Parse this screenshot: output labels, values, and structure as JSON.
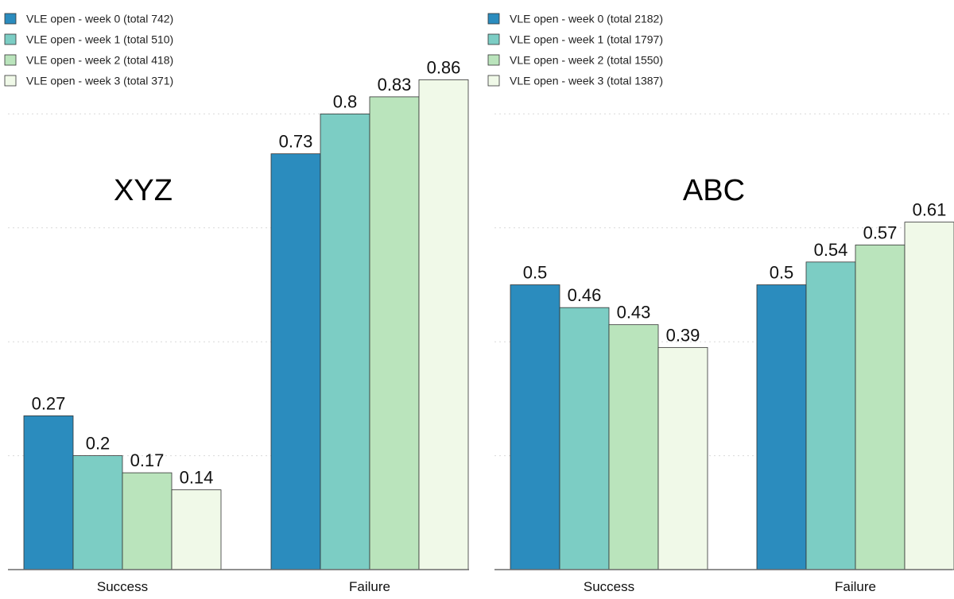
{
  "chart_data": [
    {
      "type": "bar",
      "title": "XYZ",
      "categories": [
        "Success",
        "Failure"
      ],
      "series": [
        {
          "name": "VLE open - week 0 (total 742)",
          "values": [
            0.27,
            0.73
          ],
          "labels": [
            "0.27",
            "0.73"
          ],
          "color": "#2b8cbe"
        },
        {
          "name": "VLE open - week 1 (total 510)",
          "values": [
            0.2,
            0.8
          ],
          "labels": [
            "0.2",
            "0.8"
          ],
          "color": "#7ccdc4"
        },
        {
          "name": "VLE open - week 2 (total 418)",
          "values": [
            0.17,
            0.83
          ],
          "labels": [
            "0.17",
            "0.83"
          ],
          "color": "#bae4bc"
        },
        {
          "name": "VLE open - week 3 (total 371)",
          "values": [
            0.14,
            0.86
          ],
          "labels": [
            "0.14",
            "0.86"
          ],
          "color": "#f0f9e8"
        }
      ],
      "ylim": [
        0,
        0.9
      ],
      "grid": true,
      "legend_position": "top-left"
    },
    {
      "type": "bar",
      "title": "ABC",
      "categories": [
        "Success",
        "Failure"
      ],
      "series": [
        {
          "name": "VLE open - week 0 (total 2182)",
          "values": [
            0.5,
            0.5
          ],
          "labels": [
            "0.5",
            "0.5"
          ],
          "color": "#2b8cbe"
        },
        {
          "name": "VLE open - week 1 (total 1797)",
          "values": [
            0.46,
            0.54
          ],
          "labels": [
            "0.46",
            "0.54"
          ],
          "color": "#7ccdc4"
        },
        {
          "name": "VLE open - week 2 (total 1550)",
          "values": [
            0.43,
            0.57
          ],
          "labels": [
            "0.43",
            "0.57"
          ],
          "color": "#bae4bc"
        },
        {
          "name": "VLE open - week 3 (total 1387)",
          "values": [
            0.39,
            0.61
          ],
          "labels": [
            "0.39",
            "0.61"
          ],
          "color": "#f0f9e8"
        }
      ],
      "ylim": [
        0,
        0.9
      ],
      "grid": true,
      "legend_position": "top-left"
    }
  ]
}
